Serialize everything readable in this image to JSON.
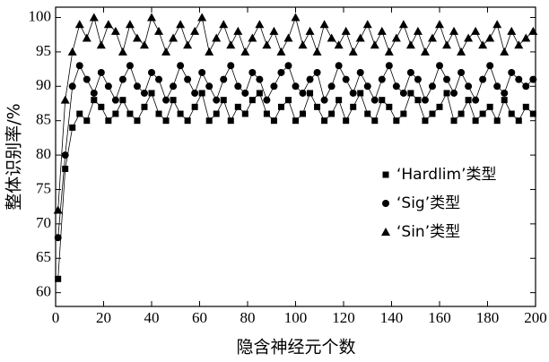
{
  "chart_data": {
    "type": "line",
    "xlabel": "隐含神经元个数",
    "ylabel": "整体识别率/%",
    "x": [
      1,
      4,
      7,
      10,
      13,
      16,
      19,
      22,
      25,
      28,
      31,
      34,
      37,
      40,
      43,
      46,
      49,
      52,
      55,
      58,
      61,
      64,
      67,
      70,
      73,
      76,
      79,
      82,
      85,
      88,
      91,
      94,
      97,
      100,
      103,
      106,
      109,
      112,
      115,
      118,
      121,
      124,
      127,
      130,
      133,
      136,
      139,
      142,
      145,
      148,
      151,
      154,
      157,
      160,
      163,
      166,
      169,
      172,
      175,
      178,
      181,
      184,
      187,
      190,
      193,
      196,
      199
    ],
    "series": [
      {
        "name": "‘Hardlim’类型",
        "color": "#000000",
        "marker": "square",
        "values": [
          62,
          78,
          84,
          86,
          85,
          88,
          87,
          85,
          86,
          88,
          86,
          85,
          87,
          89,
          86,
          85,
          88,
          86,
          85,
          87,
          89,
          85,
          86,
          88,
          85,
          87,
          86,
          88,
          89,
          86,
          85,
          87,
          88,
          85,
          86,
          89,
          87,
          85,
          86,
          88,
          85,
          87,
          89,
          86,
          85,
          88,
          87,
          85,
          86,
          89,
          88,
          85,
          86,
          87,
          89,
          85,
          86,
          88,
          85,
          86,
          87,
          85,
          88,
          86,
          85,
          87,
          86
        ]
      },
      {
        "name": "‘Sig’类型",
        "color": "#000000",
        "marker": "circle",
        "values": [
          68,
          80,
          90,
          93,
          91,
          89,
          92,
          90,
          88,
          91,
          93,
          90,
          89,
          92,
          91,
          88,
          90,
          93,
          91,
          89,
          92,
          90,
          88,
          91,
          93,
          90,
          89,
          92,
          91,
          88,
          90,
          92,
          93,
          90,
          89,
          91,
          92,
          88,
          90,
          93,
          91,
          89,
          92,
          90,
          88,
          91,
          93,
          90,
          89,
          92,
          91,
          88,
          90,
          93,
          91,
          89,
          92,
          90,
          88,
          91,
          93,
          90,
          89,
          92,
          91,
          90,
          91
        ]
      },
      {
        "name": "‘Sin’类型",
        "color": "#000000",
        "marker": "triangle",
        "values": [
          72,
          88,
          95,
          99,
          97,
          100,
          96,
          99,
          98,
          95,
          99,
          97,
          96,
          100,
          98,
          95,
          97,
          99,
          96,
          98,
          100,
          95,
          97,
          99,
          96,
          98,
          95,
          97,
          99,
          96,
          98,
          95,
          97,
          100,
          96,
          98,
          95,
          99,
          97,
          96,
          98,
          95,
          97,
          99,
          96,
          98,
          95,
          97,
          99,
          96,
          98,
          95,
          97,
          99,
          96,
          98,
          95,
          97,
          98,
          96,
          97,
          99,
          95,
          98,
          96,
          97,
          98
        ]
      }
    ],
    "xlim": [
      0,
      200
    ],
    "xticks": [
      0,
      20,
      40,
      60,
      80,
      100,
      120,
      140,
      160,
      180,
      200
    ],
    "ylim": [
      58,
      101.5
    ],
    "yticks": [
      60,
      65,
      70,
      75,
      80,
      85,
      90,
      95,
      100
    ],
    "legend": "right"
  }
}
